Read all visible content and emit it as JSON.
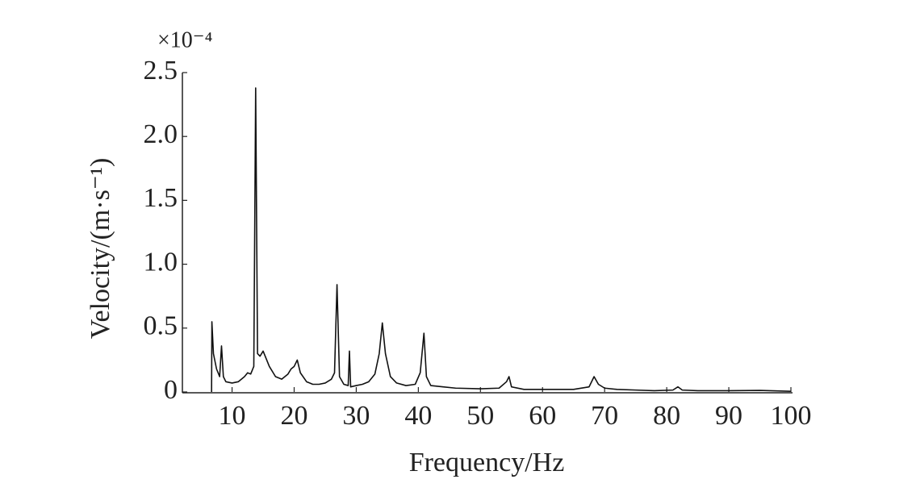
{
  "chart_data": {
    "type": "line",
    "multiplier": "×10⁻⁴",
    "x_label": "Frequency/Hz",
    "y_label": "Velocity/(m·s⁻¹)",
    "xlim": [
      2,
      100
    ],
    "ylim": [
      0,
      2.5
    ],
    "xticks": [
      10,
      20,
      30,
      40,
      50,
      60,
      70,
      80,
      90,
      100
    ],
    "yticks": [
      0,
      0.5,
      {
        "value": 1,
        "label": "1.0"
      },
      1.5,
      {
        "value": 2,
        "label": "2.0"
      },
      2.5
    ],
    "grid": false,
    "series": [
      {
        "color": "#111111",
        "x": [
          6.7,
          6.75,
          7.0,
          7.5,
          8.0,
          8.3,
          8.6,
          9,
          10,
          11,
          12,
          12.5,
          13,
          13.5,
          13.8,
          14.1,
          14.5,
          15,
          15.5,
          16,
          17,
          18,
          19,
          19.5,
          20,
          20.5,
          21,
          22,
          23,
          24,
          25,
          26,
          26.5,
          26.9,
          27.3,
          28,
          28.7,
          28.9,
          29.1,
          30,
          31,
          32,
          33,
          33.7,
          34.2,
          34.7,
          35.5,
          36.5,
          38,
          39.5,
          40.3,
          40.9,
          41.3,
          42,
          44,
          46,
          50,
          53,
          54.2,
          54.6,
          55,
          57,
          60,
          65,
          67.5,
          68.3,
          69,
          70,
          72,
          75,
          78,
          81,
          81.8,
          82.5,
          85,
          90,
          95,
          100
        ],
        "values": [
          0,
          0.55,
          0.3,
          0.18,
          0.12,
          0.36,
          0.12,
          0.08,
          0.07,
          0.08,
          0.12,
          0.15,
          0.14,
          0.2,
          2.38,
          0.3,
          0.28,
          0.32,
          0.26,
          0.2,
          0.12,
          0.1,
          0.14,
          0.18,
          0.2,
          0.25,
          0.15,
          0.08,
          0.06,
          0.06,
          0.07,
          0.1,
          0.15,
          0.84,
          0.12,
          0.06,
          0.05,
          0.32,
          0.04,
          0.05,
          0.06,
          0.08,
          0.14,
          0.3,
          0.54,
          0.3,
          0.12,
          0.07,
          0.05,
          0.06,
          0.15,
          0.46,
          0.12,
          0.05,
          0.04,
          0.03,
          0.025,
          0.03,
          0.08,
          0.12,
          0.04,
          0.02,
          0.02,
          0.02,
          0.04,
          0.12,
          0.06,
          0.03,
          0.02,
          0.015,
          0.01,
          0.015,
          0.04,
          0.015,
          0.01,
          0.01,
          0.012,
          0.005
        ]
      }
    ]
  }
}
